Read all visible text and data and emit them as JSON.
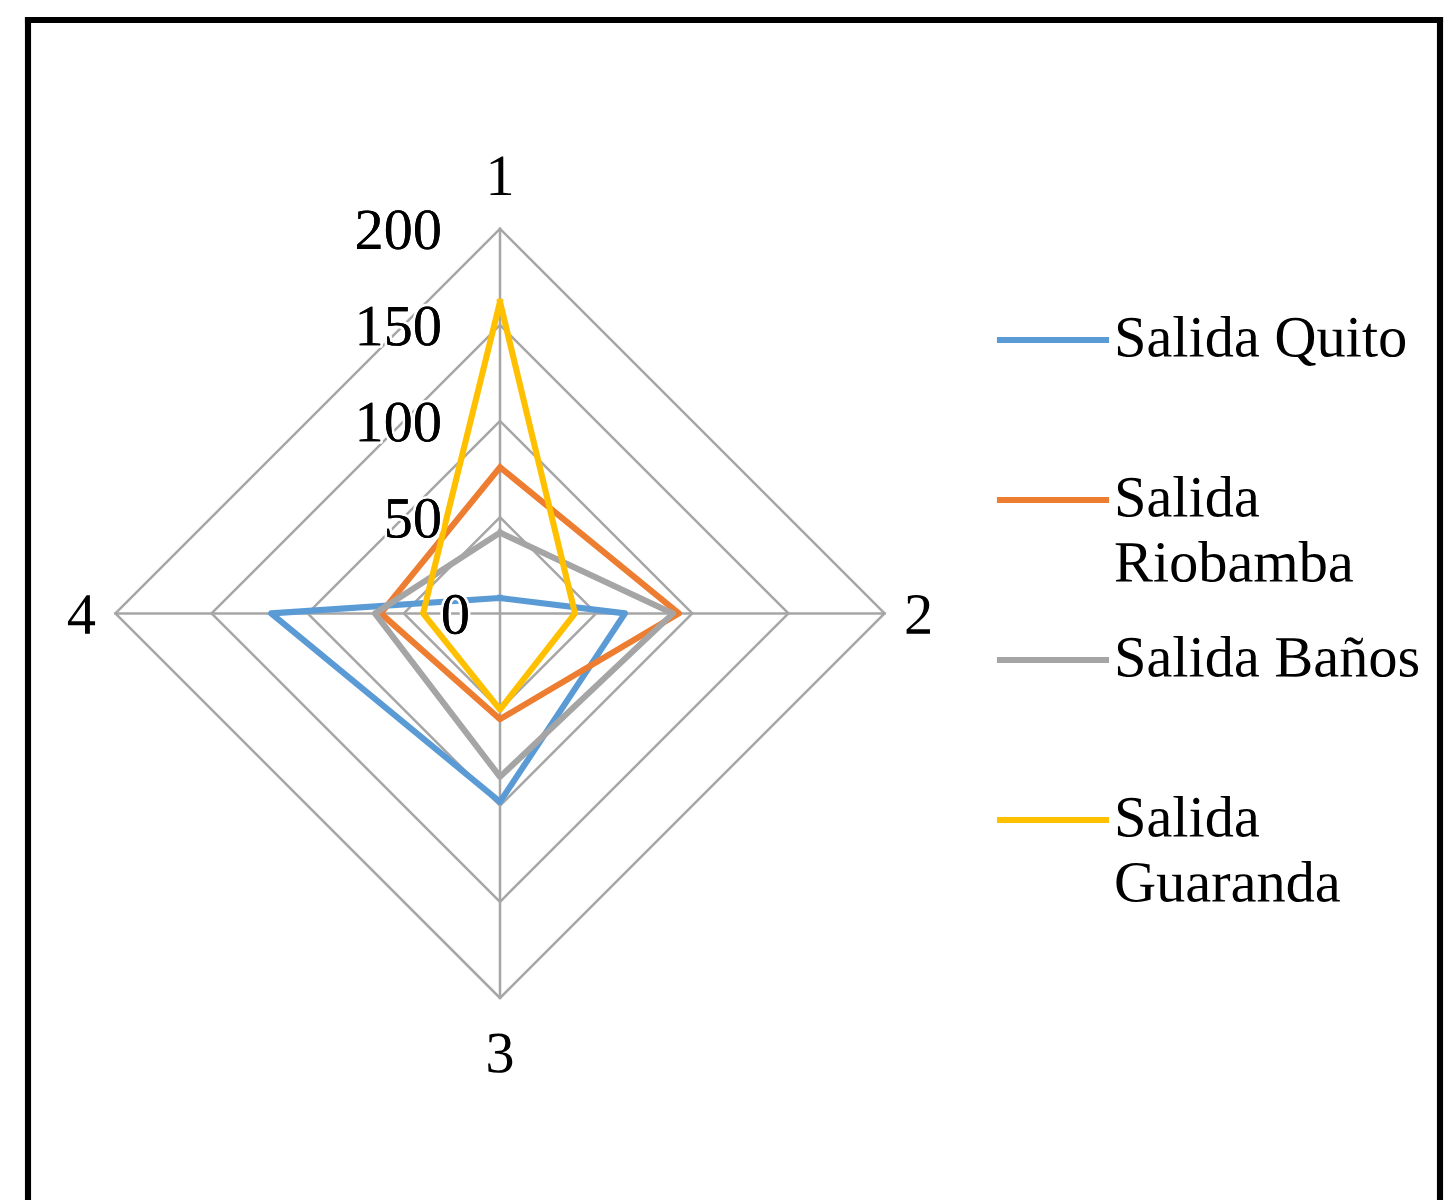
{
  "chart_data": {
    "type": "radar",
    "categories": [
      "1",
      "2",
      "3",
      "4"
    ],
    "ylim": [
      0,
      200
    ],
    "yticks": [
      0,
      50,
      100,
      150,
      200
    ],
    "grid": true,
    "legend": "right",
    "series": [
      {
        "name": "Salida Quito",
        "color": "#5b9bd5",
        "values": [
          8,
          65,
          98,
          119
        ]
      },
      {
        "name": "Salida Riobamba",
        "color": "#ed7d31",
        "values": [
          76,
          93,
          55,
          62
        ]
      },
      {
        "name": "Salida Baños",
        "color": "#a5a5a5",
        "values": [
          42,
          90,
          85,
          65
        ]
      },
      {
        "name": "Salida Guaranda",
        "color": "#ffc000",
        "values": [
          162,
          39,
          50,
          40
        ]
      }
    ]
  }
}
